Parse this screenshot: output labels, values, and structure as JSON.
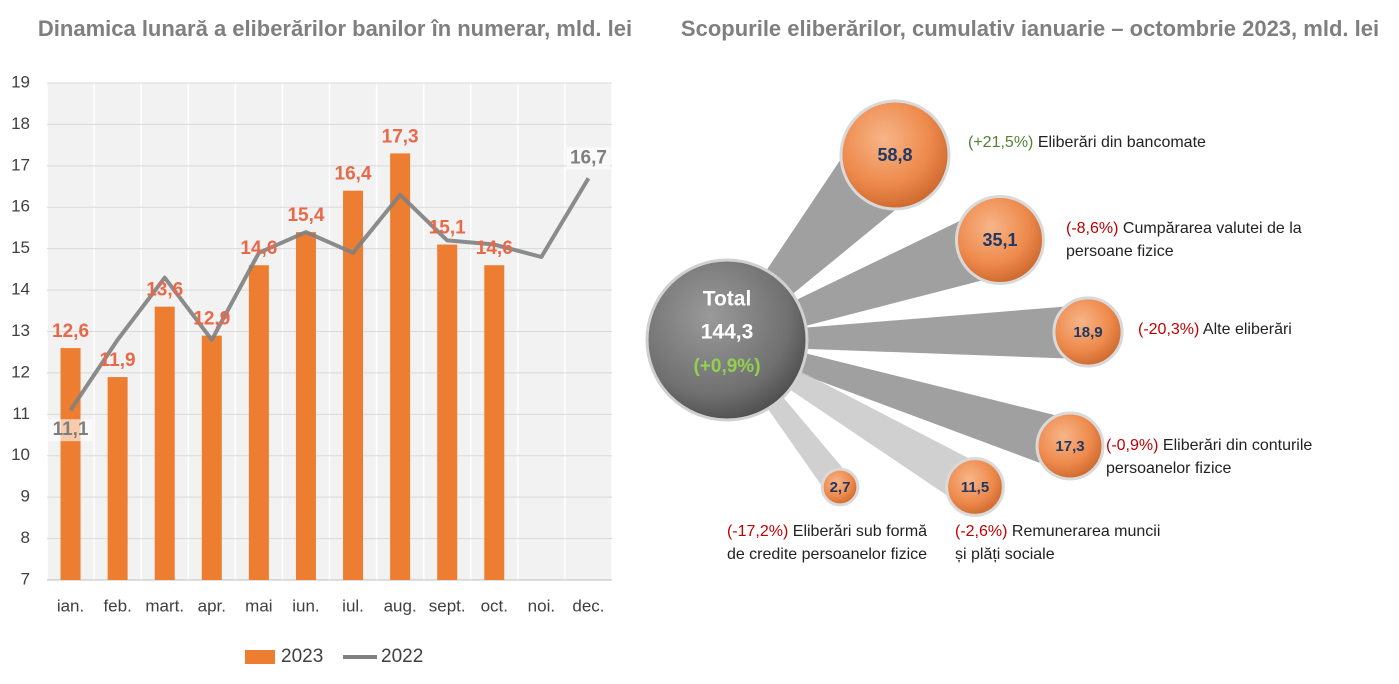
{
  "chart_data": [
    {
      "type": "bar_line",
      "title": "Dinamica lunară a eliberărilor banilor în numerar, mld. lei",
      "categories": [
        "ian.",
        "feb.",
        "mart.",
        "apr.",
        "mai",
        "iun.",
        "iul.",
        "aug.",
        "sept.",
        "oct.",
        "noi.",
        "dec."
      ],
      "series": [
        {
          "name": "2023",
          "type": "bar",
          "color": "#ed7d31",
          "values": [
            12.6,
            11.9,
            13.6,
            12.9,
            14.6,
            15.4,
            16.4,
            17.3,
            15.1,
            14.6,
            null,
            null
          ],
          "value_labels": [
            "12,6",
            "11,9",
            "13,6",
            "12,9",
            "14,6",
            "15,4",
            "16,4",
            "17,3",
            "15,1",
            "14,6",
            null,
            null
          ]
        },
        {
          "name": "2022",
          "type": "line",
          "color": "#7f7f7f",
          "values": [
            11.1,
            12.8,
            14.3,
            12.8,
            14.9,
            15.4,
            14.9,
            16.3,
            15.2,
            15.1,
            14.8,
            16.7
          ],
          "value_labels": [
            "11,1",
            null,
            null,
            null,
            null,
            null,
            null,
            null,
            null,
            null,
            null,
            "16,7"
          ]
        }
      ],
      "ylim": [
        7,
        19
      ],
      "yticks": [
        7,
        8,
        9,
        10,
        11,
        12,
        13,
        14,
        15,
        16,
        17,
        18,
        19
      ],
      "grid": true,
      "legend": "bottom"
    },
    {
      "type": "bubble",
      "title": "Scopurile eliberărilor, cumulativ ianuarie – octombrie 2023, mld. lei",
      "total": {
        "name": "Total",
        "value": 144.3,
        "value_label": "144,3",
        "change": 0.9,
        "change_label": "(+0,9%)"
      },
      "categories": [
        "Eliberări din bancomate",
        "Cumpărarea valutei de la persoane fizice",
        "Alte eliberări",
        "Eliberări din conturile persoanelor fizice",
        "Remunerarea muncii și plăți sociale",
        "Eliberări sub formă de credite persoanelor fizice"
      ],
      "values": [
        58.8,
        35.1,
        18.9,
        17.3,
        11.5,
        2.7
      ],
      "value_labels": [
        "58,8",
        "35,1",
        "18,9",
        "17,3",
        "11,5",
        "2,7"
      ],
      "changes": [
        21.5,
        -8.6,
        -20.3,
        -0.9,
        -2.6,
        -17.2
      ],
      "change_labels": [
        "(+21,5%)",
        "(-8,6%)",
        "(-20,3%)",
        "(-0,9%)",
        "(-2,6%)",
        "(-17,2%)"
      ],
      "color": "#f0894a",
      "total_color": "#7a7a7a",
      "positive_color": "#548235",
      "negative_color": "#c00000",
      "total_change_color": "#92d050"
    }
  ]
}
